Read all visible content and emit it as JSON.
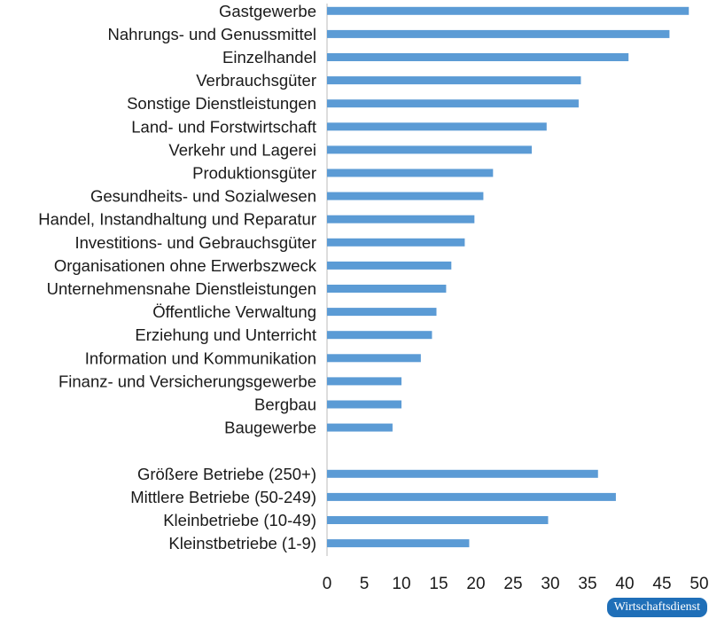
{
  "chart_data": {
    "type": "bar",
    "orientation": "horizontal",
    "categories": [
      "Gastgewerbe",
      "Nahrungs- und Genussmittel",
      "Einzelhandel",
      "Verbrauchsgüter",
      "Sonstige Dienstleistungen",
      "Land- und Forstwirtschaft",
      "Verkehr und Lagerei",
      "Produktionsgüter",
      "Gesundheits- und Sozialwesen",
      "Handel, Instandhaltung und Reparatur",
      "Investitions- und Gebrauchsgüter",
      "Organisationen ohne Erwerbszweck",
      "Unternehmensnahe Dienstleistungen",
      "Öffentliche Verwaltung",
      "Erziehung und Unterricht",
      "Information und Kommunikation",
      "Finanz- und Versicherungsgewerbe",
      "Bergbau",
      "Baugewerbe",
      "",
      "Größere Betriebe (250+)",
      "Mittlere Betriebe (50-249)",
      "Kleinbetriebe (10-49)",
      "Kleinstbetriebe (1-9)"
    ],
    "values": [
      48.6,
      46.0,
      40.5,
      34.1,
      33.8,
      29.5,
      27.5,
      22.3,
      21.0,
      19.8,
      18.5,
      16.7,
      16.0,
      14.7,
      14.1,
      12.6,
      10.0,
      10.0,
      8.8,
      null,
      36.4,
      38.8,
      29.7,
      19.1
    ],
    "ticks": [
      0,
      5,
      10,
      15,
      20,
      25,
      30,
      35,
      40,
      45,
      50
    ],
    "xlim": [
      0,
      50
    ],
    "title": "",
    "xlabel": "",
    "ylabel": "",
    "grid": false,
    "bar_color": "#5b9bd5"
  },
  "footer": {
    "badge_text": "Wirtschaftsdienst",
    "badge_color": "#1f6fb8"
  }
}
